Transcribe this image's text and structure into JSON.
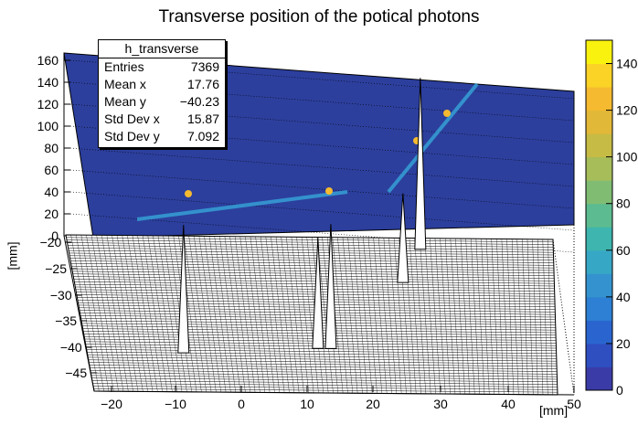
{
  "chart_data": {
    "type": "lego-surface",
    "title": "Transverse position of the potical photons",
    "xlabel": "[mm]",
    "ylabel": "[mm]",
    "xlim": [
      -23,
      50
    ],
    "ylim": [
      -48,
      -20
    ],
    "zlim": [
      0,
      160
    ],
    "x_ticks": [
      "−20",
      "−10",
      "0",
      "10",
      "20",
      "30",
      "40",
      "50"
    ],
    "y_ticks": [
      "−20",
      "−25",
      "−30",
      "−35",
      "−40",
      "−45"
    ],
    "z_ticks": [
      "0",
      "20",
      "40",
      "60",
      "80",
      "100",
      "120",
      "140",
      "160"
    ],
    "colorbar": {
      "min": 0,
      "max": 150,
      "ticks": [
        "0",
        "20",
        "40",
        "60",
        "80",
        "100",
        "120",
        "140"
      ],
      "colors": [
        "#3b3ba7",
        "#2f4ec0",
        "#2a65cf",
        "#2d80d4",
        "#3493cf",
        "#37a7c6",
        "#3eb5ae",
        "#5cbb90",
        "#80bd73",
        "#a6bd5a",
        "#c6bb45",
        "#e2b838",
        "#f5ba30",
        "#fbd226",
        "#f9f20f"
      ]
    },
    "peaks": [
      {
        "x": -8,
        "y": -41,
        "z": 112
      },
      {
        "x": 13,
        "y": -40,
        "z": 97
      },
      {
        "x": 15,
        "y": -40,
        "z": 109
      },
      {
        "x": 27,
        "y": -28,
        "z": 78
      },
      {
        "x": 30,
        "y": -22,
        "z": 150
      }
    ]
  },
  "stats": {
    "name": "h_transverse",
    "rows": [
      {
        "label": "Entries",
        "value": "7369"
      },
      {
        "label": "Mean x",
        "value": "17.76"
      },
      {
        "label": "Mean y",
        "value": "−40.23"
      },
      {
        "label": "Std Dev x",
        "value": "15.87"
      },
      {
        "label": "Std Dev y",
        "value": "7.092"
      }
    ]
  }
}
